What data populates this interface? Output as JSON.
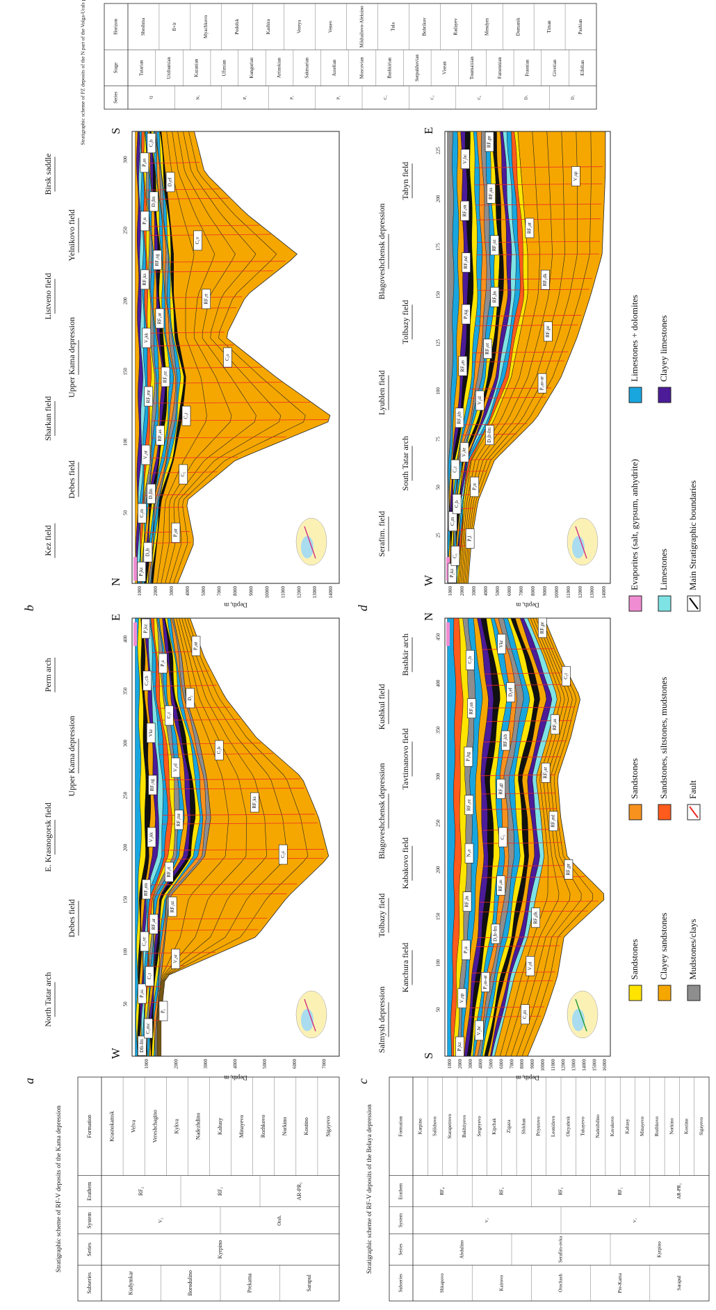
{
  "tables": [
    {
      "title": "Stratigraphic scheme of RF-V deposits of the Kama depression",
      "columns": [
        {
          "header": "Subseries",
          "items": [
            "Kudymkar",
            "Borodulino",
            "Prekama",
            "Sarapul"
          ]
        },
        {
          "header": "Series",
          "items": [
            "Kyrpino"
          ]
        },
        {
          "header": "System",
          "items": [
            "V₂",
            "Orsh."
          ]
        },
        {
          "header": "Erathem",
          "items": [
            "RF₂",
            "RF₁",
            "AR-PR₁"
          ]
        },
        {
          "header": "Formation",
          "items": [
            "Krasnokamsk",
            "Velva",
            "Vereshchagino",
            "Kykva",
            "Nadezhdino",
            "Kaltasy",
            "Minayevo",
            "Rozhkovo",
            "Norkino",
            "Kostino",
            "Sigayevo"
          ]
        }
      ]
    },
    {
      "title": "Stratigraphic scheme of RF-V deposits of the Belaya depression",
      "columns": [
        {
          "header": "Subseries",
          "items": [
            "Shkapovo",
            "Kairovo",
            "Otochash",
            "Pre-Kama",
            "Sarapul"
          ]
        },
        {
          "header": "Series",
          "items": [
            "Abdulino",
            "Serafim-ovka",
            "Kyrpino"
          ]
        },
        {
          "header": "System",
          "items": [
            "V₂",
            "V₁"
          ]
        },
        {
          "header": "Erathem",
          "items": [
            "RF₄",
            "RF₃",
            "RF₂",
            "RF₁",
            "AR-PR₁"
          ]
        },
        {
          "header": "Formation",
          "items": [
            "Karpino",
            "Salikhovo",
            "Starapetrovo",
            "Bakhtiyevo",
            "Sergeyevo",
            "Kipchak",
            "Zigaza",
            "Shikhan",
            "Priyutovo",
            "Leonidovo",
            "Oktyabrsk",
            "Tukayevo",
            "Nadezhdino",
            "Kavakovo",
            "Kaltasy",
            "Minayevo",
            "Rozhkovo",
            "Norkino",
            "Kostino",
            "Sigayevo"
          ]
        }
      ]
    },
    {
      "title": "Stratigraphic scheme of PZ deposits of the N part of the Volga-Urals petroleum basin",
      "columns": [
        {
          "header": "Series",
          "items": [
            "Q",
            "N₂",
            "P₃",
            "P₂",
            "P₁",
            "C₃",
            "C₂",
            "C₁",
            "D₃",
            "D₂"
          ]
        },
        {
          "header": "Stage",
          "items": [
            "Tatarian",
            "Urzhumian",
            "Kazanian",
            "Ufimian",
            "Kungurian",
            "Artinskian",
            "Sakmarian",
            "Asselian",
            "Moscovian",
            "Bashkirian",
            "Serpukhovian",
            "Visean",
            "Tournaisian",
            "Famennian",
            "Frasnian",
            "Givetian",
            "Eifelian"
          ]
        },
        {
          "header": "Horizon",
          "items": [
            "Sheshma",
            "fl+ir",
            "Myachkovo",
            "Podolsk",
            "Kashira",
            "Vereya",
            "Venev",
            "Mikhailovo-Aleksino",
            "Tula",
            "Bobrikov",
            "Radayev",
            "Mendym",
            "Domanik",
            "Timan",
            "Pashian"
          ]
        }
      ]
    }
  ],
  "panels": [
    {
      "letter": "a",
      "left": "W",
      "right": "E",
      "axis_label": "Depth, m",
      "headers": [
        "North Tatar arch",
        "Debes field",
        "E. Krasnogorsk field",
        "Upper Kama depression",
        "Perm arch"
      ],
      "xticks": [
        50,
        100,
        150,
        200,
        250,
        300,
        350,
        400
      ],
      "yticks": [
        1000,
        2000,
        3000,
        4000,
        5000,
        6000,
        7000
      ],
      "labels": [
        "Dfr-fm",
        "C₁mc",
        "P₁",
        "P₁ss",
        "C₁t",
        "V₂sr",
        "C₂vr",
        "RF₂ar",
        "RF₁sz",
        "RF₁rm",
        "RF₁rt",
        "C₂s",
        "V₂kk",
        "RF₁mr",
        "RF₁ks",
        "RF₁sg",
        "V₂sl",
        "C₂b",
        "Vkr",
        "C₁t",
        "D₂",
        "C₁cb",
        "P₂s",
        "P₂ur",
        "P₂kz"
      ]
    },
    {
      "letter": "b",
      "left": "N",
      "right": "S",
      "axis_label": "Depth, m",
      "headers": [
        "Kez field",
        "Debes field",
        "Sharkan field",
        "Upper Kama depression",
        "Listveno field",
        "Yelnikovo field",
        "Birsk saddle"
      ],
      "xticks": [
        50,
        100,
        150,
        200,
        250,
        300
      ],
      "yticks": [
        1000,
        2000,
        3000,
        4000,
        5000,
        7000,
        8000,
        9000,
        10000,
        11000,
        12000,
        13000,
        14000
      ],
      "labels": [
        "P₂kz",
        "D₃fr",
        "P₂ur",
        "C₂m",
        "D₃fm",
        "C₂",
        "V₂sr",
        "RF₁as",
        "C₁t",
        "RF₁mr",
        "RF₁sz",
        "C₂s",
        "V₂kk",
        "RF₁ar",
        "RF₁rt",
        "RF₁ks",
        "RF₁sg",
        "C₁v",
        "P₂u",
        "D₃fm",
        "D₃ef",
        "P₂as",
        "C₂b"
      ]
    },
    {
      "letter": "c",
      "left": "S",
      "right": "N",
      "axis_label": "Depth, m",
      "headers": [
        "Salmysh depression",
        "Kanchura field",
        "Tolbazy field",
        "Kabakovo field",
        "Blagoveshchensk depression",
        "Tavtimanovo field",
        "Kushkul field",
        "Bashkir arch"
      ],
      "xticks": [
        50,
        100,
        150,
        200,
        250,
        300,
        350,
        400,
        450
      ],
      "yticks": [
        1000,
        2000,
        3000,
        4000,
        5000,
        6000,
        7000,
        8000,
        9000,
        10000,
        11000,
        12000,
        13000,
        14000,
        15000,
        16000
      ],
      "labels": [
        "P₂kz",
        "V₂bc",
        "C₂m",
        "V₂sp",
        "P₁as-ar",
        "V₂sl",
        "P₂u",
        "D₃fr-fm",
        "RF₄dk",
        "RF₃ln",
        "RF₃as",
        "RF₃pr",
        "N₂a",
        "C₂",
        "RF₂nd",
        "RF₂sz",
        "RF₂gt",
        "RF₂ar",
        "P₁kg",
        "RF₃kb",
        "RF₃as",
        "RF₁sn",
        "D₂ef",
        "C₁t",
        "C₂b",
        "Vkr",
        "RF₁pr"
      ]
    },
    {
      "letter": "d",
      "left": "W",
      "right": "E",
      "axis_label": "Depth, m",
      "headers": [
        "Serafim. field",
        "South Tatar arch",
        "Lyublen field",
        "Tolbazy field",
        "Blagoveshchensk depression",
        "Tabyn field"
      ],
      "xticks": [
        25,
        50,
        75,
        100,
        125,
        150,
        175,
        200,
        225
      ],
      "yticks": [
        1000,
        2000,
        3000,
        4000,
        5000,
        6000,
        7000,
        8000,
        9000,
        10000,
        11000,
        12000,
        13000,
        14000
      ],
      "labels": [
        "P₂kz",
        "C₁",
        "P₂l",
        "C₂m",
        "C₂b",
        "P₂u",
        "C₁t",
        "V₂kr",
        "D₃fr-fm",
        "RF₃kb",
        "V₂sl",
        "P₁as-ar",
        "RF₃as",
        "RF₃ot",
        "RF₃pr",
        "P₁kg",
        "RF₃ln",
        "RF₃dk",
        "RF₂nd",
        "RF₂sz",
        "RF₂ar",
        "RF₃sn",
        "RF₂us",
        "V₂sp",
        "V₂bc",
        "RF₁pr"
      ]
    }
  ],
  "legend": [
    {
      "label": "Sandstones",
      "color": "#ffe400",
      "kind": "box"
    },
    {
      "label": "Clayey sandstones",
      "color": "#f5a700",
      "kind": "box"
    },
    {
      "label": "Mudstones/clays",
      "color": "#8e8e8e",
      "kind": "box"
    },
    {
      "label": "Sandstones",
      "color": "#f7921e",
      "kind": "box"
    },
    {
      "label": "Sandstones, siltstones, mudstones",
      "color": "#ff5b1c",
      "kind": "box"
    },
    {
      "label": "Fault",
      "color": "#ee2a24",
      "kind": "line"
    },
    {
      "label": "Evaporites (salt, gypsum, anhydrite)",
      "color": "#f08cd2",
      "kind": "box"
    },
    {
      "label": "Limestones",
      "color": "#7fe3e5",
      "kind": "box"
    },
    {
      "label": "Main Stratigraphic boundaries",
      "color": "#000000",
      "kind": "line"
    },
    {
      "label": "Limestones + dolomites",
      "color": "#19a6df",
      "kind": "box"
    },
    {
      "label": "Clayey limestones",
      "color": "#4b1b98",
      "kind": "box"
    }
  ]
}
